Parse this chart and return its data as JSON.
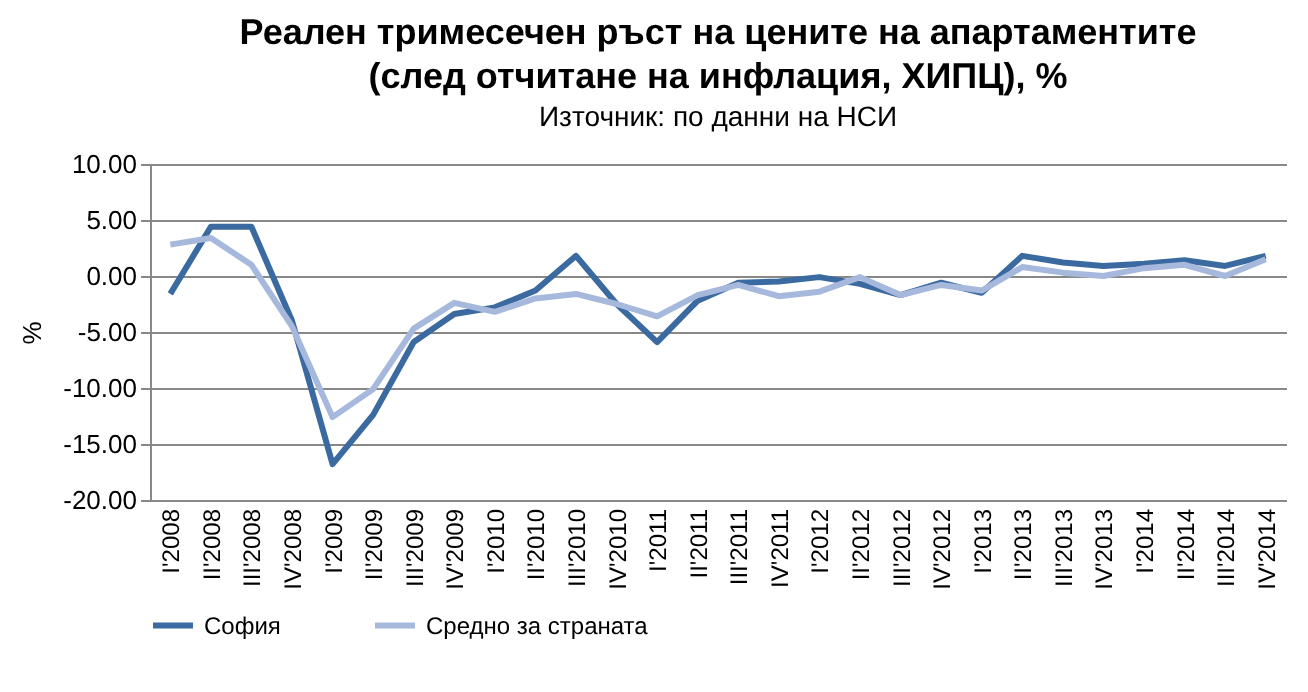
{
  "chart_data": {
    "type": "line",
    "title": "Реален тримесечен ръст на цените на апартаментите\n(след отчитане на инфлация, ХИПЦ), %",
    "subtitle": "Източник: по данни на НСИ",
    "ylabel": "%",
    "categories": [
      "I'2008",
      "II'2008",
      "III'2008",
      "IV'2008",
      "I'2009",
      "II'2009",
      "III'2009",
      "IV'2009",
      "I'2010",
      "II'2010",
      "III'2010",
      "IV'2010",
      "I'2011",
      "II'2011",
      "III'2011",
      "IV'2011",
      "I'2012",
      "II'2012",
      "III'2012",
      "IV'2012",
      "I'2013",
      "II'2013",
      "III'2013",
      "IV'2013",
      "I'2014",
      "II'2014",
      "III'2014",
      "IV'2014"
    ],
    "series": [
      {
        "name": "София",
        "color": "#3b6aa0",
        "values": [
          -1.6,
          4.4,
          4.4,
          -4.0,
          -16.8,
          -12.4,
          -5.9,
          -3.4,
          -2.8,
          -1.3,
          1.8,
          -2.5,
          -5.9,
          -2.2,
          -0.6,
          -0.5,
          -0.1,
          -0.7,
          -1.7,
          -0.6,
          -1.5,
          1.8,
          1.2,
          0.9,
          1.1,
          1.4,
          0.9,
          1.8
        ]
      },
      {
        "name": "Средно за страната",
        "color": "#a6b9dc",
        "values": [
          2.8,
          3.4,
          1.0,
          -4.5,
          -12.6,
          -10.1,
          -4.7,
          -2.4,
          -3.2,
          -2.0,
          -1.6,
          -2.5,
          -3.6,
          -1.7,
          -0.8,
          -1.8,
          -1.4,
          -0.1,
          -1.7,
          -0.8,
          -1.3,
          0.8,
          0.3,
          0.0,
          0.7,
          1.0,
          0.0,
          1.5
        ]
      }
    ],
    "ylim": [
      -20,
      10
    ],
    "yticks": [
      {
        "value": 10,
        "label": "10.00"
      },
      {
        "value": 5,
        "label": "5.00"
      },
      {
        "value": 0,
        "label": "0.00"
      },
      {
        "value": -5,
        "label": "-5.00"
      },
      {
        "value": -10,
        "label": "-10.00"
      },
      {
        "value": -15,
        "label": "-15.00"
      },
      {
        "value": -20,
        "label": "-20.00"
      }
    ],
    "grid": "y",
    "legend": "bottom",
    "marker": "none",
    "line_style": "solid"
  }
}
